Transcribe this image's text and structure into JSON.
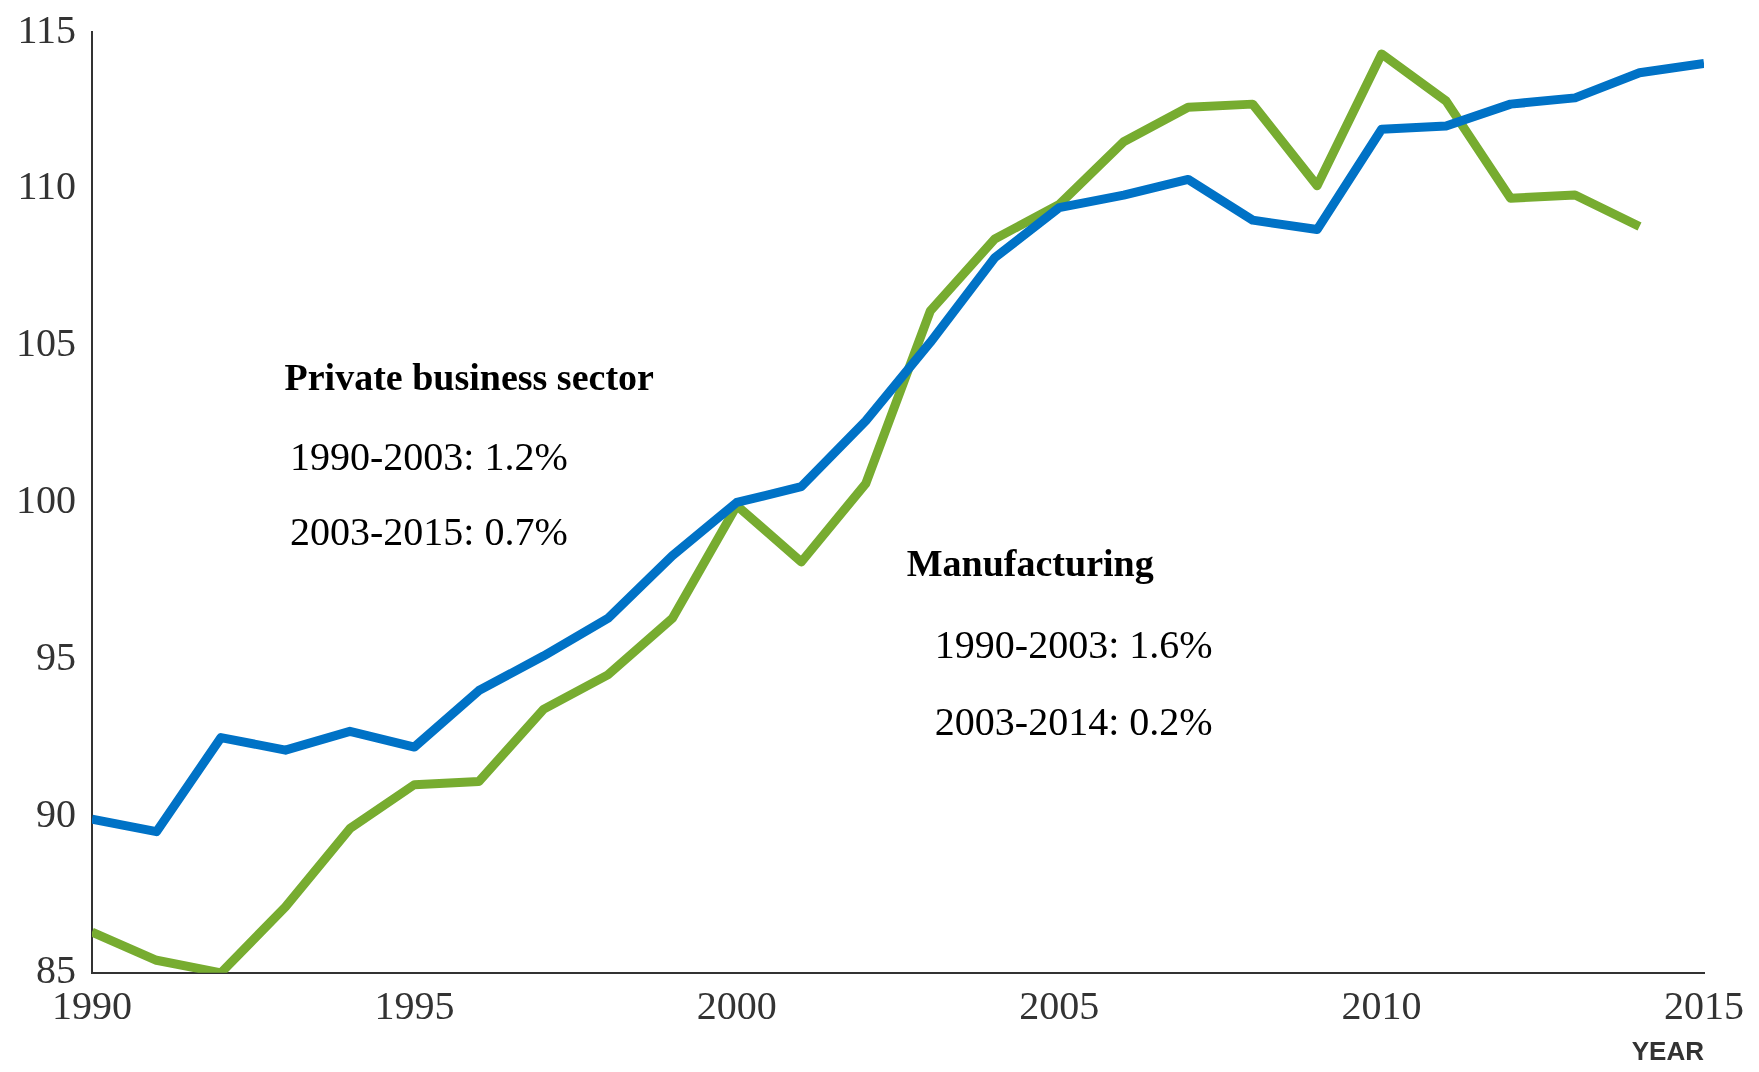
{
  "chart_data": {
    "type": "line",
    "xlabel": "YEAR",
    "x": [
      1990,
      1991,
      1992,
      1993,
      1994,
      1995,
      1996,
      1997,
      1998,
      1999,
      2000,
      2001,
      2002,
      2003,
      2004,
      2005,
      2006,
      2007,
      2008,
      2009,
      2010,
      2011,
      2012,
      2013,
      2014,
      2015
    ],
    "series": [
      {
        "color": "#0072c6",
        "values": [
          89.9,
          89.5,
          92.5,
          92.1,
          92.7,
          92.2,
          94.0,
          95.1,
          96.3,
          98.3,
          100.0,
          100.5,
          102.6,
          105.1,
          107.8,
          109.4,
          109.8,
          110.3,
          109.0,
          108.7,
          111.9,
          112.0,
          112.7,
          112.9,
          113.7,
          114.0
        ]
      },
      {
        "color": "#77ac30",
        "values": [
          86.3,
          85.4,
          85.0,
          87.1,
          89.6,
          91.0,
          91.1,
          93.4,
          94.5,
          96.3,
          99.9,
          98.1,
          100.6,
          106.1,
          108.4,
          109.5,
          111.5,
          112.6,
          112.7,
          110.1,
          114.3,
          112.8,
          109.7,
          109.8,
          108.8,
          null
        ]
      }
    ],
    "annotations": [
      "Private business sector",
      "1990-2003: 1.2%",
      "2003-2015: 0.7%",
      "Manufacturing",
      "1990-2003: 1.6%",
      "2003-2014: 0.2%"
    ],
    "xlim": [
      1990,
      2015
    ],
    "xticks": [
      1990,
      1995,
      2000,
      2005,
      2010,
      2015
    ],
    "ylim": [
      85,
      115
    ],
    "yticks": [
      85,
      90,
      95,
      100,
      105,
      110,
      115
    ],
    "grid": false,
    "legend": false,
    "marker": "none",
    "line_style": "solid"
  }
}
